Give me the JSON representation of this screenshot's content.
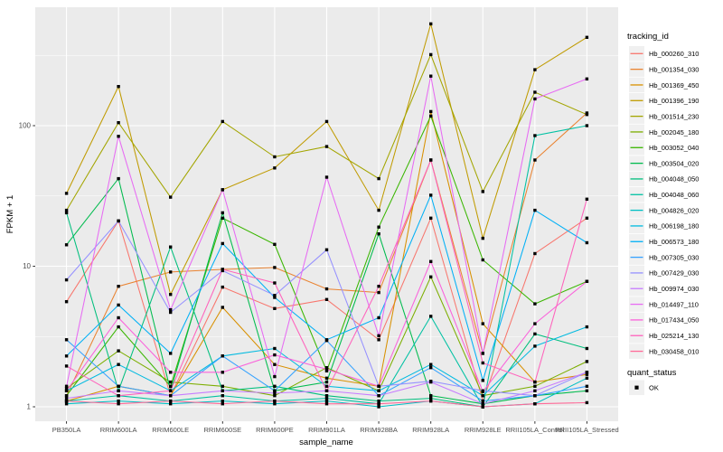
{
  "figure": {
    "y_axis_title": "FPKM + 1",
    "x_axis_title": "sample_name",
    "legend": {
      "tracking_title": "tracking_id",
      "quant_title": "quant_status",
      "quant_ok_label": "OK"
    },
    "style": {
      "panel_bg": "#EBEBEB",
      "grid_color": "#FFFFFF",
      "tick_text_color": "#4D4D4D",
      "tick_mark_color": "#333333",
      "marker_color": "#000000",
      "legend_key_bg": "#F0F0F0"
    }
  },
  "chart_data": {
    "type": "line",
    "title": "",
    "xlabel": "sample_name",
    "ylabel": "FPKM + 1",
    "y_scale": "log10",
    "y_ticks": [
      1,
      10,
      100
    ],
    "y_minor_ticks": [
      3.1623,
      31.623,
      316.23
    ],
    "ylim": [
      0.79,
      700
    ],
    "grid": "white major+minor on gray panel",
    "legend_position": "right",
    "point_shape": "filled-black-square",
    "point_legend": {
      "title": "quant_status",
      "label": "OK"
    },
    "categories": [
      "PB350LA",
      "RRIM600LA",
      "RRIM600LE",
      "RRIM600SE",
      "RRIM600PE",
      "RRIM901LA",
      "RRIM928BA",
      "RRIM928LA",
      "RRIM928LE",
      "RRII105LA_Control",
      "RRII105LA_Stressed"
    ],
    "series": [
      {
        "name": "Hb_000260_310",
        "color": "#F8766D",
        "values": [
          5.6,
          21,
          1.2,
          7.1,
          5.0,
          5.8,
          3.0,
          22,
          1.1,
          12.3,
          22
        ]
      },
      {
        "name": "Hb_001354_030",
        "color": "#EA8331",
        "values": [
          1.2,
          7.2,
          9.1,
          9.5,
          9.8,
          6.9,
          6.5,
          57,
          2.4,
          57,
          123
        ]
      },
      {
        "name": "Hb_001369_450",
        "color": "#D89000",
        "values": [
          1.1,
          1.4,
          1.2,
          5.1,
          2.0,
          1.6,
          1.4,
          126,
          3.9,
          1.5,
          1.7
        ]
      },
      {
        "name": "Hb_001396_190",
        "color": "#C09B00",
        "values": [
          33,
          190,
          6.3,
          35,
          50,
          107,
          25,
          530,
          15.8,
          250,
          425
        ]
      },
      {
        "name": "Hb_001514_230",
        "color": "#A3A500",
        "values": [
          25,
          105,
          31,
          107,
          60,
          71,
          42,
          320,
          34,
          173,
          120
        ]
      },
      {
        "name": "Hb_002045_180",
        "color": "#7CAE00",
        "values": [
          1.35,
          2.5,
          1.5,
          1.4,
          1.2,
          1.9,
          1.3,
          8.4,
          1.2,
          1.4,
          2.1
        ]
      },
      {
        "name": "Hb_003052_040",
        "color": "#39B600",
        "values": [
          1.2,
          3.7,
          1.4,
          22,
          14.3,
          1.8,
          19,
          117,
          11.1,
          5.4,
          7.8
        ]
      },
      {
        "name": "Hb_003504_020",
        "color": "#00BB4E",
        "values": [
          14.2,
          42,
          1.3,
          24,
          1.3,
          1.5,
          17,
          1.2,
          1.05,
          1.2,
          1.3
        ]
      },
      {
        "name": "Hb_004048_050",
        "color": "#00BF7D",
        "values": [
          24,
          1.3,
          13.7,
          1.3,
          1.4,
          1.2,
          1.1,
          1.15,
          1.0,
          3.3,
          2.6
        ]
      },
      {
        "name": "Hb_004048_060",
        "color": "#00C1A3",
        "values": [
          1.1,
          1.2,
          1.1,
          1.2,
          1.1,
          1.15,
          1.05,
          4.4,
          1.0,
          85,
          100
        ]
      },
      {
        "name": "Hb_004826_020",
        "color": "#00BFC4",
        "values": [
          1.05,
          1.1,
          1.05,
          1.1,
          1.05,
          1.1,
          1.0,
          1.1,
          1.0,
          1.05,
          1.6
        ]
      },
      {
        "name": "Hb_006198_180",
        "color": "#00BAE0",
        "values": [
          1.3,
          2.0,
          1.3,
          2.3,
          2.6,
          1.4,
          1.3,
          2.0,
          1.2,
          2.7,
          3.7
        ]
      },
      {
        "name": "Hb_006573_180",
        "color": "#00B0F6",
        "values": [
          2.3,
          5.3,
          2.4,
          14.5,
          6.0,
          3.0,
          4.3,
          32,
          1.54,
          25,
          14.7
        ]
      },
      {
        "name": "Hb_007305_030",
        "color": "#35A2FF",
        "values": [
          3.0,
          1.4,
          1.2,
          2.3,
          1.3,
          2.96,
          1.2,
          1.9,
          1.1,
          1.2,
          1.4
        ]
      },
      {
        "name": "Hb_007429_030",
        "color": "#9590FF",
        "values": [
          8.0,
          21,
          4.7,
          9.3,
          6.2,
          13.1,
          1.4,
          1.52,
          1.3,
          1.2,
          1.76
        ]
      },
      {
        "name": "Hb_009974_030",
        "color": "#C77CFF",
        "values": [
          1.15,
          1.3,
          1.2,
          1.3,
          1.25,
          1.3,
          1.2,
          1.5,
          1.05,
          1.3,
          1.76
        ]
      },
      {
        "name": "Hb_014497_110",
        "color": "#E76BF3",
        "values": [
          1.4,
          84,
          4.9,
          35,
          1.64,
          43,
          3.2,
          225,
          2.4,
          155,
          215
        ]
      },
      {
        "name": "Hb_017434_050",
        "color": "#FA62DB",
        "values": [
          1.3,
          4.3,
          1.76,
          1.76,
          2.34,
          1.85,
          1.4,
          10.8,
          1.28,
          3.9,
          7.8
        ]
      },
      {
        "name": "Hb_025214_130",
        "color": "#FF62BC",
        "values": [
          1.95,
          1.2,
          1.3,
          9.5,
          7.6,
          1.3,
          7.2,
          57,
          2.05,
          1.5,
          30
        ]
      },
      {
        "name": "Hb_030458_010",
        "color": "#FF6A98",
        "values": [
          1.1,
          1.05,
          1.1,
          1.05,
          1.1,
          1.05,
          1.05,
          1.1,
          1.0,
          1.05,
          1.07
        ]
      }
    ]
  }
}
